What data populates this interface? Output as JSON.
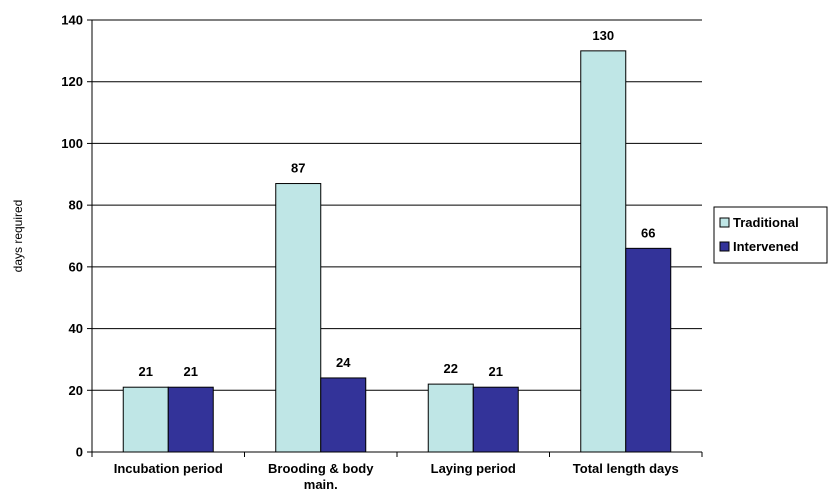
{
  "chart_data": {
    "type": "bar",
    "title": "",
    "xlabel": "",
    "ylabel": "days required",
    "categories": [
      [
        "Incubation period"
      ],
      [
        "Brooding & body",
        "main."
      ],
      [
        "Laying period"
      ],
      [
        "Total length days"
      ]
    ],
    "series": [
      {
        "name": "Traditional",
        "values": [
          21,
          87,
          22,
          130
        ],
        "color": "#bfe6e6"
      },
      {
        "name": "Intervened",
        "values": [
          21,
          24,
          21,
          66
        ],
        "color": "#333399"
      }
    ],
    "ylim": [
      0,
      140
    ],
    "yticks": [
      0,
      20,
      40,
      60,
      80,
      100,
      120,
      140
    ],
    "grid": true,
    "legend_position": "right"
  }
}
